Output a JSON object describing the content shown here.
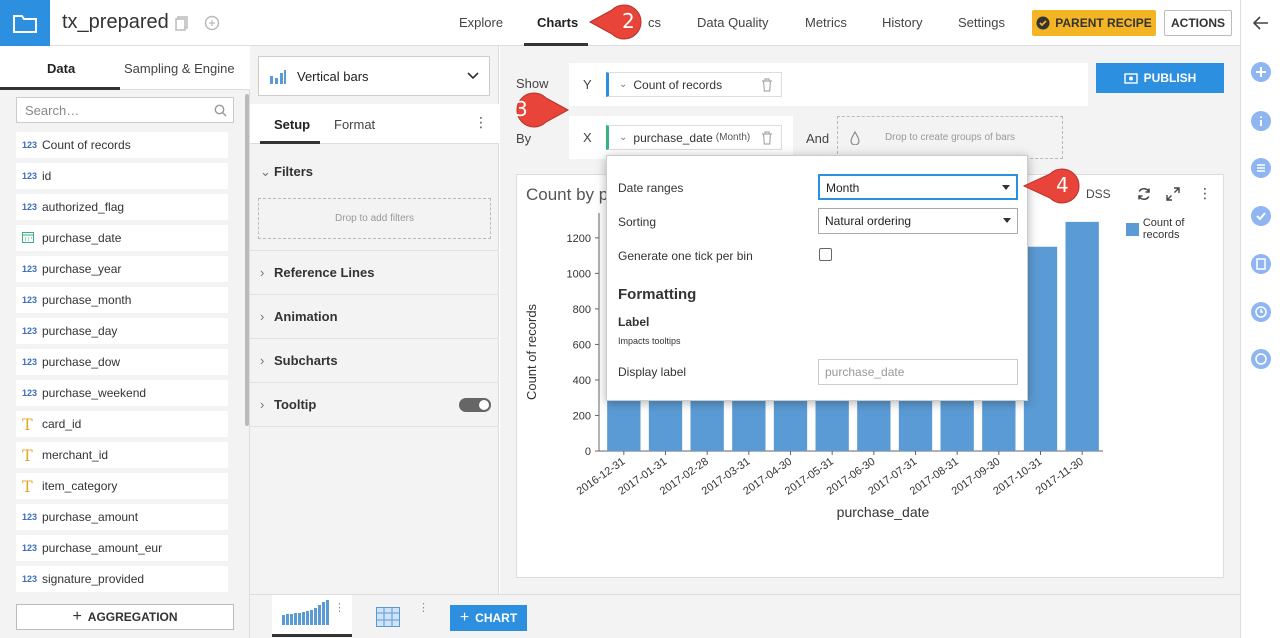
{
  "header": {
    "dataset_name": "tx_prepared",
    "tabs": [
      {
        "label": "Explore"
      },
      {
        "label": "Charts"
      },
      {
        "label": "Statistics"
      },
      {
        "label": "Data Quality"
      },
      {
        "label": "Metrics"
      },
      {
        "label": "History"
      },
      {
        "label": "Settings"
      }
    ],
    "active_tab": "Charts",
    "parent_recipe_label": "PARENT RECIPE",
    "actions_label": "ACTIONS",
    "tab_visible_fragment": "cs"
  },
  "left_panel": {
    "tabs": [
      {
        "label": "Data"
      },
      {
        "label": "Sampling & Engine"
      }
    ],
    "search_placeholder": "Search…",
    "columns": [
      {
        "type": "123",
        "name": "Count of records"
      },
      {
        "type": "123",
        "name": "id"
      },
      {
        "type": "123",
        "name": "authorized_flag"
      },
      {
        "type": "date",
        "name": "purchase_date"
      },
      {
        "type": "123",
        "name": "purchase_year"
      },
      {
        "type": "123",
        "name": "purchase_month"
      },
      {
        "type": "123",
        "name": "purchase_day"
      },
      {
        "type": "123",
        "name": "purchase_dow"
      },
      {
        "type": "123",
        "name": "purchase_weekend"
      },
      {
        "type": "T",
        "name": "card_id"
      },
      {
        "type": "T",
        "name": "merchant_id"
      },
      {
        "type": "T",
        "name": "item_category"
      },
      {
        "type": "123",
        "name": "purchase_amount"
      },
      {
        "type": "123",
        "name": "purchase_amount_eur"
      },
      {
        "type": "123",
        "name": "signature_provided"
      }
    ],
    "aggregation_label": "AGGREGATION"
  },
  "mid_panel": {
    "chart_type": "Vertical bars",
    "tabs": [
      {
        "label": "Setup"
      },
      {
        "label": "Format"
      }
    ],
    "sections": [
      {
        "label": "Filters"
      },
      {
        "label": "Reference Lines"
      },
      {
        "label": "Animation"
      },
      {
        "label": "Subcharts"
      },
      {
        "label": "Tooltip"
      }
    ],
    "drop_filters": "Drop to add filters"
  },
  "main": {
    "show_label": "Show",
    "by_label": "By",
    "and_label": "And",
    "y_letter": "Y",
    "x_letter": "X",
    "y_measure": "Count of records",
    "x_dimension": "purchase_date",
    "x_dimension_grain": "(Month)",
    "drop_groups": "Drop to create groups of bars",
    "publish_label": "PUBLISH",
    "chart_title_visible": "Count by p",
    "dss_label": "DSS",
    "legend_label": "Count of records"
  },
  "popup": {
    "date_ranges_label": "Date ranges",
    "date_ranges_value": "Month",
    "sorting_label": "Sorting",
    "sorting_value": "Natural ordering",
    "tick_per_bin_label": "Generate one tick per bin",
    "formatting_heading": "Formatting",
    "label_heading": "Label",
    "label_sub": "Impacts tooltips",
    "display_label_label": "Display label",
    "display_label_placeholder": "purchase_date"
  },
  "bottom": {
    "add_chart_label": "CHART"
  },
  "callouts": [
    {
      "number": "2"
    },
    {
      "number": "3"
    },
    {
      "number": "4"
    }
  ],
  "colors": {
    "accent_blue": "#2d8fe0",
    "bar_blue": "#5b9bd5",
    "parent_recipe_yellow": "#f4b524",
    "callout_red": "#e8443a"
  },
  "chart_data": {
    "type": "bar",
    "xlabel": "purchase_date",
    "ylabel": "Count of records",
    "categories": [
      "2016-12-31",
      "2017-01-31",
      "2017-02-28",
      "2017-03-31",
      "2017-04-30",
      "2017-05-31",
      "2017-06-30",
      "2017-07-31",
      "2017-08-31",
      "2017-09-30",
      "2017-10-31",
      "2017-11-30"
    ],
    "values": [
      530,
      560,
      545,
      560,
      570,
      585,
      600,
      610,
      640,
      680,
      1150,
      1290
    ],
    "yticks": [
      0,
      200,
      400,
      600,
      800,
      1000,
      1200
    ],
    "ylim": [
      0,
      1340
    ],
    "legend_position": "top-right",
    "series": [
      {
        "name": "Count of records"
      }
    ]
  }
}
